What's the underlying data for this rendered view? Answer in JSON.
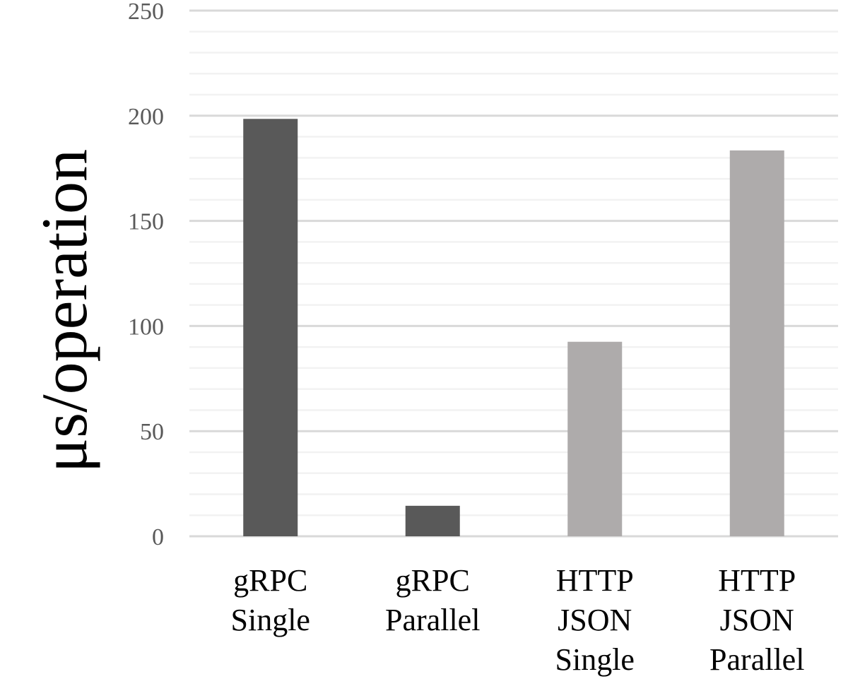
{
  "chart_data": {
    "type": "bar",
    "categories": [
      [
        "gRPC",
        "Single"
      ],
      [
        "gRPC",
        "Parallel"
      ],
      [
        "HTTP",
        "JSON",
        "Single"
      ],
      [
        "HTTP",
        "JSON",
        "Parallel"
      ]
    ],
    "values": [
      198.5,
      14.5,
      92.5,
      183.5
    ],
    "bar_colors": [
      "#595959",
      "#595959",
      "#AEABAB",
      "#AEABAB"
    ],
    "ylabel": "μs/operation",
    "ylim": [
      0,
      250
    ],
    "yticks": [
      "0",
      "50",
      "100",
      "150",
      "200",
      "250"
    ],
    "major_step": 50,
    "minor_step": 10,
    "grid": true,
    "major_grid_color": "#D9D9D9",
    "minor_grid_color": "#F2F2F2",
    "legend": "none"
  }
}
